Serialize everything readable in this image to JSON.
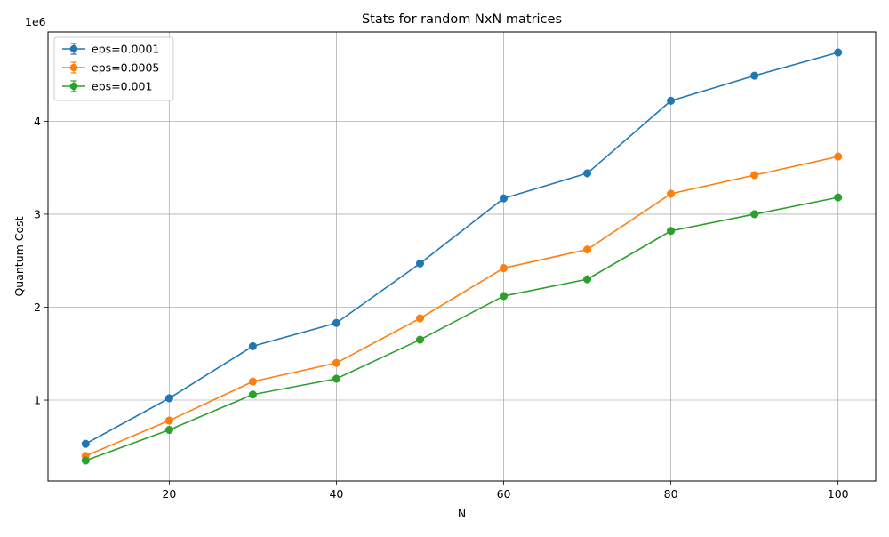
{
  "chart_data": {
    "type": "line",
    "title": "Stats for random NxN matrices",
    "xlabel": "N",
    "ylabel": "Quantum Cost",
    "y_offset_label": "1e6",
    "y_scale": 1000000,
    "xlim": [
      5.5,
      104.5
    ],
    "ylim": [
      130000,
      4960000
    ],
    "x_ticks": [
      20,
      40,
      60,
      80,
      100
    ],
    "x_tick_labels": [
      "20",
      "40",
      "60",
      "80",
      "100"
    ],
    "y_ticks": [
      1000000,
      2000000,
      3000000,
      4000000
    ],
    "y_tick_labels": [
      "1",
      "2",
      "3",
      "4"
    ],
    "grid": true,
    "legend_position": "top-left",
    "marker": "circle",
    "error_bars": true,
    "x": [
      10,
      20,
      30,
      40,
      50,
      60,
      70,
      80,
      90,
      100
    ],
    "series": [
      {
        "name": "eps=0.0001",
        "color": "#1f77b4",
        "values": [
          530000,
          1020000,
          1580000,
          1830000,
          2470000,
          3170000,
          3440000,
          4220000,
          4490000,
          4740000
        ]
      },
      {
        "name": "eps=0.0005",
        "color": "#ff7f0e",
        "values": [
          400000,
          780000,
          1200000,
          1400000,
          1880000,
          2420000,
          2620000,
          3220000,
          3420000,
          3620000
        ]
      },
      {
        "name": "eps=0.001",
        "color": "#2ca02c",
        "values": [
          350000,
          680000,
          1060000,
          1230000,
          1650000,
          2120000,
          2300000,
          2820000,
          3000000,
          3180000
        ]
      }
    ]
  }
}
